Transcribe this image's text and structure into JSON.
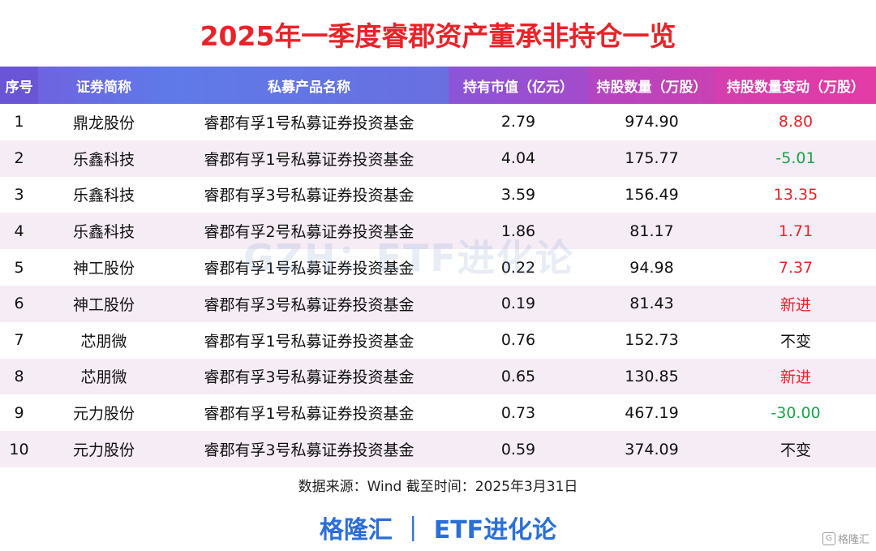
{
  "title": "2025年一季度睿郡资产董承非持仓一览",
  "headers": {
    "idx": "序号",
    "stock": "证券简称",
    "fund": "私募产品名称",
    "value": "持有市值（亿元）",
    "qty": "持股数量（万股）",
    "change": "持股数量变动（万股）"
  },
  "rows": [
    {
      "idx": "1",
      "stock": "鼎龙股份",
      "fund": "睿郡有孚1号私募证券投资基金",
      "value": "2.79",
      "qty": "974.90",
      "change": "8.80"
    },
    {
      "idx": "2",
      "stock": "乐鑫科技",
      "fund": "睿郡有孚1号私募证券投资基金",
      "value": "4.04",
      "qty": "175.77",
      "change": "-5.01"
    },
    {
      "idx": "3",
      "stock": "乐鑫科技",
      "fund": "睿郡有孚3号私募证券投资基金",
      "value": "3.59",
      "qty": "156.49",
      "change": "13.35"
    },
    {
      "idx": "4",
      "stock": "乐鑫科技",
      "fund": "睿郡有孚2号私募证券投资基金",
      "value": "1.86",
      "qty": "81.17",
      "change": "1.71"
    },
    {
      "idx": "5",
      "stock": "神工股份",
      "fund": "睿郡有孚1号私募证券投资基金",
      "value": "0.22",
      "qty": "94.98",
      "change": "7.37"
    },
    {
      "idx": "6",
      "stock": "神工股份",
      "fund": "睿郡有孚3号私募证券投资基金",
      "value": "0.19",
      "qty": "81.43",
      "change": "新进"
    },
    {
      "idx": "7",
      "stock": "芯朋微",
      "fund": "睿郡有孚1号私募证券投资基金",
      "value": "0.76",
      "qty": "152.73",
      "change": "不变"
    },
    {
      "idx": "8",
      "stock": "芯朋微",
      "fund": "睿郡有孚3号私募证券投资基金",
      "value": "0.65",
      "qty": "130.85",
      "change": "新进"
    },
    {
      "idx": "9",
      "stock": "元力股份",
      "fund": "睿郡有孚1号私募证券投资基金",
      "value": "0.73",
      "qty": "467.19",
      "change": "-30.00"
    },
    {
      "idx": "10",
      "stock": "元力股份",
      "fund": "睿郡有孚3号私募证券投资基金",
      "value": "0.59",
      "qty": "374.09",
      "change": "不变"
    }
  ],
  "source": "数据来源：Wind 截至时间：2025年3月31日",
  "footer": "格隆汇 ｜ ETF进化论",
  "watermark": "GZH：ETF进化论",
  "corner_logo": "格隆汇",
  "colors": {
    "title": "#e8232a",
    "increase": "#e8232a",
    "decrease": "#1aa34a",
    "footer": "#2b6fd6",
    "row_stripe": "#f6ecf6"
  }
}
